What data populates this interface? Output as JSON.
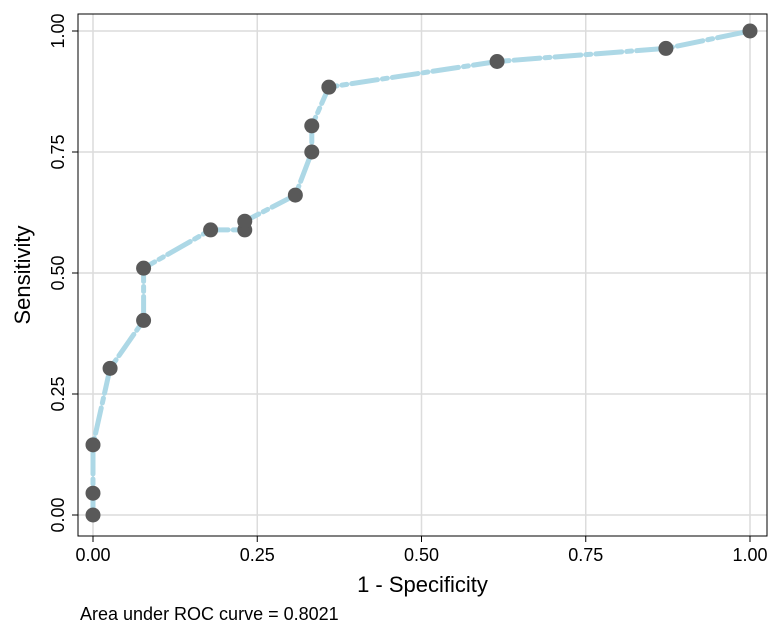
{
  "chart_data": {
    "type": "line",
    "title": "",
    "xlabel": "1 - Specificity",
    "ylabel": "Sensitivity",
    "xlim": [
      0,
      1
    ],
    "ylim": [
      0,
      1
    ],
    "xticks": [
      "0.00",
      "0.25",
      "0.50",
      "0.75",
      "1.00"
    ],
    "yticks": [
      "0.00",
      "0.25",
      "0.50",
      "0.75",
      "1.00"
    ],
    "grid": true,
    "legend": "none",
    "line_color": "#ADD8E6",
    "marker_color": "#595959",
    "line_style": "dashed",
    "series": [
      {
        "x": [
          0.0,
          0.0,
          0.0,
          0.026,
          0.077,
          0.077,
          0.179,
          0.231,
          0.231,
          0.308,
          0.333,
          0.333,
          0.359,
          0.615,
          0.872,
          1.0
        ],
        "y": [
          0.0,
          0.045,
          0.145,
          0.303,
          0.402,
          0.51,
          0.589,
          0.589,
          0.607,
          0.661,
          0.75,
          0.804,
          0.884,
          0.937,
          0.964,
          1.0
        ]
      }
    ],
    "annotation": "Area under ROC curve = 0.8021"
  }
}
